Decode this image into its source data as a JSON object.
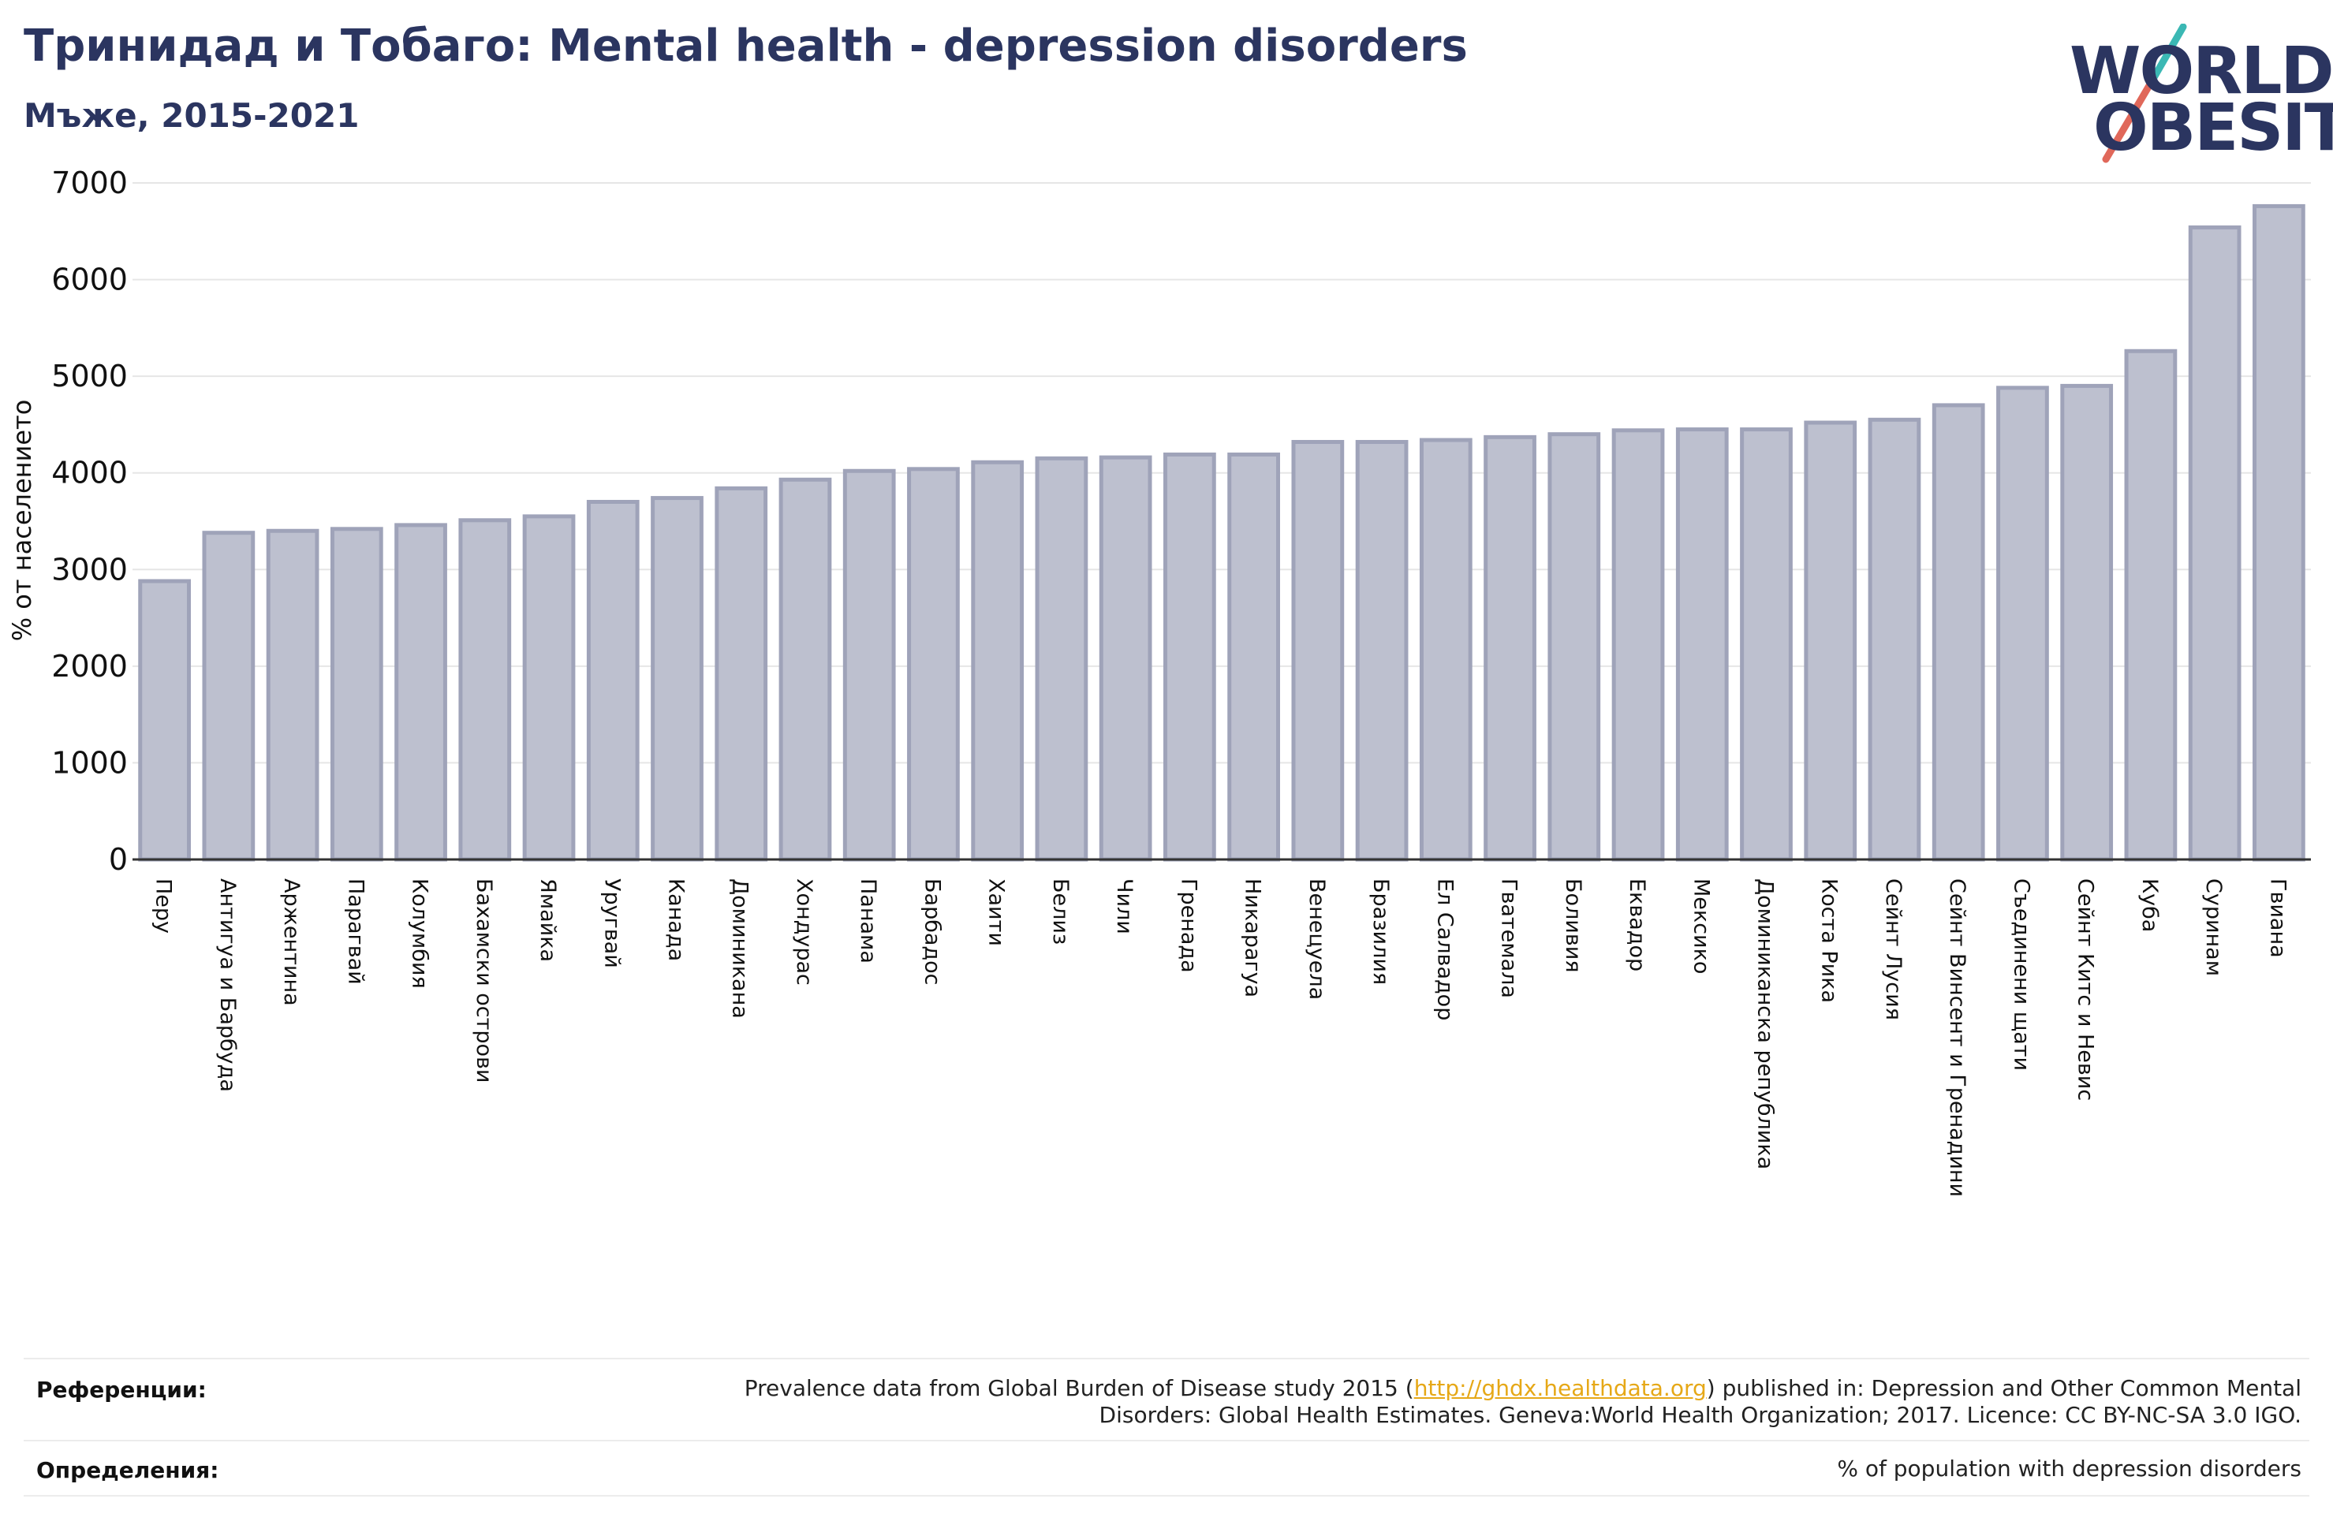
{
  "header": {
    "title": "Тринидад и Тобаго: Mental health - depression disorders",
    "subtitle": "Мъже, 2015-2021"
  },
  "logo": {
    "line1": "WORLD",
    "line2": "OBESITY",
    "colors": {
      "text": "#2b3560",
      "slash_top": "#3bb8b4",
      "slash_bottom": "#e0685a"
    }
  },
  "chart_data": {
    "type": "bar",
    "title": "",
    "xlabel": "",
    "ylabel": "% от населението",
    "ylim": [
      0,
      7000
    ],
    "yticks": [
      0,
      1000,
      2000,
      3000,
      4000,
      5000,
      6000,
      7000
    ],
    "grid": true,
    "categories": [
      "Перу",
      "Антигуа и Барбуда",
      "Аржентина",
      "Парагвай",
      "Колумбия",
      "Бахамски острови",
      "Ямайка",
      "Уругвай",
      "Канада",
      "Доминикана",
      "Хондурас",
      "Панама",
      "Барбадос",
      "Хаити",
      "Белиз",
      "Чили",
      "Гренада",
      "Никарагуа",
      "Венецуела",
      "Бразилия",
      "Ел Салвадор",
      "Гватемала",
      "Боливия",
      "Еквадор",
      "Мексико",
      "Доминиканска република",
      "Коста Рика",
      "Сейнт Лусия",
      "Сейнт Винсент и Гренадини",
      "Съединени щати",
      "Сейнт Китс и Невис",
      "Куба",
      "Суринам",
      "Гвиана"
    ],
    "values": [
      2880,
      3380,
      3400,
      3420,
      3460,
      3510,
      3550,
      3700,
      3740,
      3840,
      3930,
      4020,
      4040,
      4110,
      4150,
      4160,
      4190,
      4190,
      4320,
      4320,
      4340,
      4370,
      4400,
      4440,
      4450,
      4450,
      4520,
      4550,
      4700,
      4880,
      4900,
      5260,
      6540,
      6760
    ],
    "colors": {
      "bar_fill": "#bdc0cf",
      "bar_stroke": "#9fa3b9",
      "axis": "#333333",
      "grid": "#e6e6e6"
    }
  },
  "footer": {
    "references_label": "Референции:",
    "references_pre": "Prevalence data from Global Burden of Disease study 2015 (",
    "references_link": "http://ghdx.healthdata.org",
    "references_post": ") published in: Depression and Other Common Mental",
    "references_line2": "Disorders: Global Health Estimates. Geneva:World Health Organization; 2017. Licence: CC BY-NC-SA 3.0 IGO.",
    "definitions_label": "Определения:",
    "definitions_text": "% of population with depression disorders"
  }
}
